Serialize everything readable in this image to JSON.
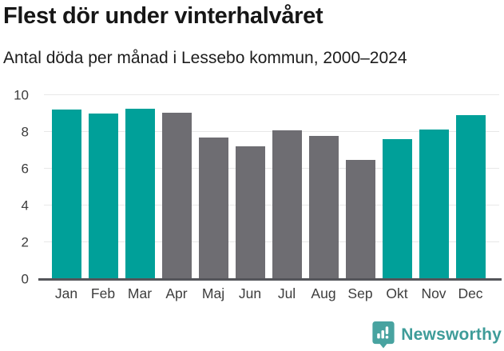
{
  "header": {
    "title": "Flest dör under vinterhalvåret",
    "subtitle": "Antal döda per månad i Lessebo kommun, 2000–2024"
  },
  "chart_data": {
    "type": "bar",
    "title": "Flest dör under vinterhalvåret",
    "subtitle": "Antal döda per månad i Lessebo kommun, 2000–2024",
    "categories": [
      "Jan",
      "Feb",
      "Mar",
      "Apr",
      "Maj",
      "Jun",
      "Jul",
      "Aug",
      "Sep",
      "Okt",
      "Nov",
      "Dec"
    ],
    "values": [
      9.2,
      9.0,
      9.25,
      9.05,
      7.7,
      7.2,
      8.1,
      7.8,
      6.5,
      7.6,
      8.15,
      8.9
    ],
    "highlighted": [
      true,
      true,
      true,
      false,
      false,
      false,
      false,
      false,
      false,
      true,
      true,
      true
    ],
    "xlabel": "",
    "ylabel": "",
    "ylim": [
      0,
      10
    ],
    "yticks": [
      0,
      2,
      4,
      6,
      8,
      10
    ],
    "ytick_labels": [
      "0",
      "2",
      "4",
      "6",
      "8",
      "10"
    ],
    "grid": true,
    "legend": "none",
    "colors": {
      "highlight": "#00a099",
      "default": "#6e6d72",
      "gridline": "#e8e8e8",
      "axis": "#54555a"
    }
  },
  "footer": {
    "logo_text": "Newsworthy",
    "logo_color": "#3e9c99",
    "logo_icon": "speech-bubble-bar-chart-icon"
  }
}
